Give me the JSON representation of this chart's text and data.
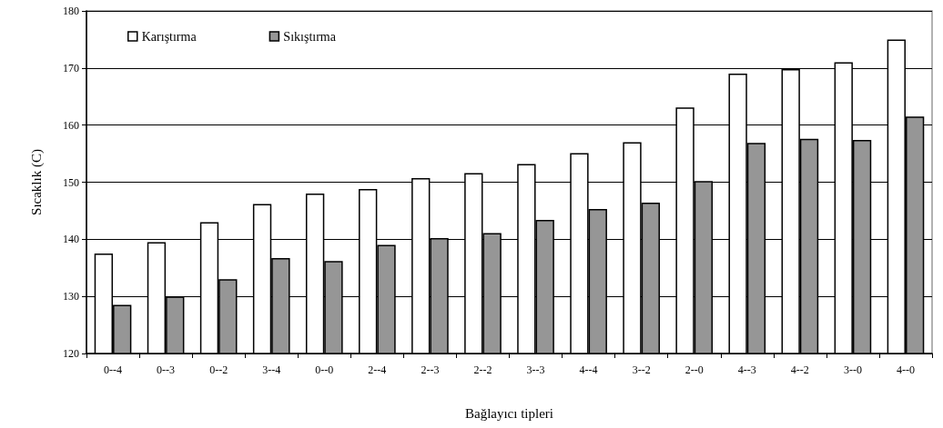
{
  "chart_data": {
    "type": "bar",
    "xlabel": "Bağlayıcı tipleri",
    "ylabel": "Sıcaklık (C)",
    "categories": [
      "0--4",
      "0--3",
      "0--2",
      "3--4",
      "0--0",
      "2--4",
      "2--3",
      "2--2",
      "3--3",
      "4--4",
      "3--2",
      "2--0",
      "4--3",
      "4--2",
      "3--0",
      "4--0"
    ],
    "series": [
      {
        "name": "Karıştırma",
        "color": "#ffffff",
        "values": [
          137.5,
          139.5,
          143,
          146.2,
          148,
          148.8,
          150.7,
          151.6,
          153.2,
          155.1,
          157,
          163.1,
          169,
          169.8,
          171,
          175
        ]
      },
      {
        "name": "Sıkıştırma",
        "color": "#969696",
        "values": [
          128.5,
          130,
          133,
          136.7,
          136.2,
          139,
          140.2,
          141.1,
          143.4,
          145.3,
          146.4,
          150.2,
          156.9,
          157.6,
          157.4,
          161.5
        ]
      }
    ],
    "ylim": [
      120,
      180
    ],
    "yticks": [
      120,
      130,
      140,
      150,
      160,
      170,
      180
    ],
    "grid": "y",
    "legend": "top left"
  }
}
